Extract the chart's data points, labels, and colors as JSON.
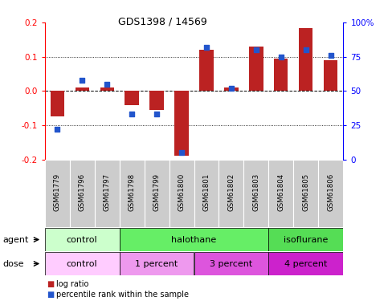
{
  "title": "GDS1398 / 14569",
  "samples": [
    "GSM61779",
    "GSM61796",
    "GSM61797",
    "GSM61798",
    "GSM61799",
    "GSM61800",
    "GSM61801",
    "GSM61802",
    "GSM61803",
    "GSM61804",
    "GSM61805",
    "GSM61806"
  ],
  "log_ratio": [
    -0.075,
    0.01,
    0.01,
    -0.04,
    -0.055,
    -0.19,
    0.12,
    0.01,
    0.13,
    0.095,
    0.185,
    0.09
  ],
  "pct_rank": [
    22,
    58,
    55,
    33,
    33,
    5,
    82,
    52,
    80,
    75,
    80,
    76
  ],
  "ylim_left": [
    -0.2,
    0.2
  ],
  "ylim_right": [
    0,
    100
  ],
  "yticks_left": [
    -0.2,
    -0.1,
    0.0,
    0.1,
    0.2
  ],
  "yticks_right": [
    0,
    25,
    50,
    75,
    100
  ],
  "ytick_labels_right": [
    "0",
    "25",
    "50",
    "75",
    "100%"
  ],
  "bar_color": "#bb2222",
  "dot_color": "#2255cc",
  "agent_groups": [
    {
      "label": "control",
      "start": 0,
      "end": 3,
      "color": "#ccffcc"
    },
    {
      "label": "halothane",
      "start": 3,
      "end": 9,
      "color": "#66ee66"
    },
    {
      "label": "isoflurane",
      "start": 9,
      "end": 12,
      "color": "#66ee66"
    }
  ],
  "dose_groups": [
    {
      "label": "control",
      "start": 0,
      "end": 3,
      "color": "#ffccff"
    },
    {
      "label": "1 percent",
      "start": 3,
      "end": 6,
      "color": "#ee88ee"
    },
    {
      "label": "3 percent",
      "start": 6,
      "end": 9,
      "color": "#dd44dd"
    },
    {
      "label": "4 percent",
      "start": 9,
      "end": 12,
      "color": "#cc22cc"
    }
  ]
}
